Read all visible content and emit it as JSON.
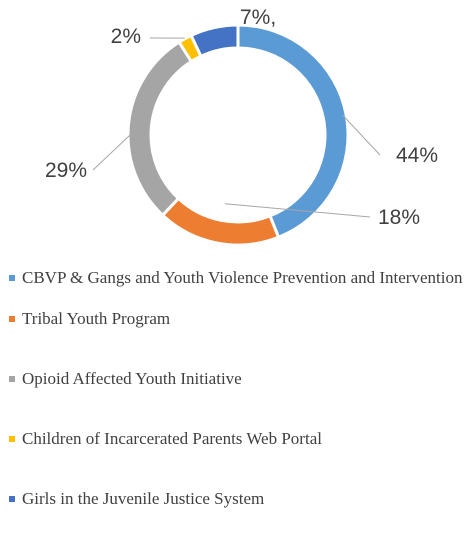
{
  "chart_data": {
    "type": "pie",
    "variant": "donut",
    "title": "",
    "series": [
      {
        "name": "CBVP & Gangs and Youth Violence Prevention and Intervention",
        "value": 44,
        "label": "44%",
        "color": "#5B9BD5"
      },
      {
        "name": "Tribal Youth Program",
        "value": 18,
        "label": "18%",
        "color": "#ED7D31"
      },
      {
        "name": "Opioid Affected Youth Initiative",
        "value": 29,
        "label": "29%",
        "color": "#A5A5A5"
      },
      {
        "name": "Children of Incarcerated Parents Web Portal",
        "value": 2,
        "label": "2%",
        "color": "#FFC000"
      },
      {
        "name": "Girls in the Juvenile Justice System",
        "value": 7,
        "label": "7%,",
        "color": "#4472C4"
      }
    ],
    "legend_position": "bottom"
  }
}
